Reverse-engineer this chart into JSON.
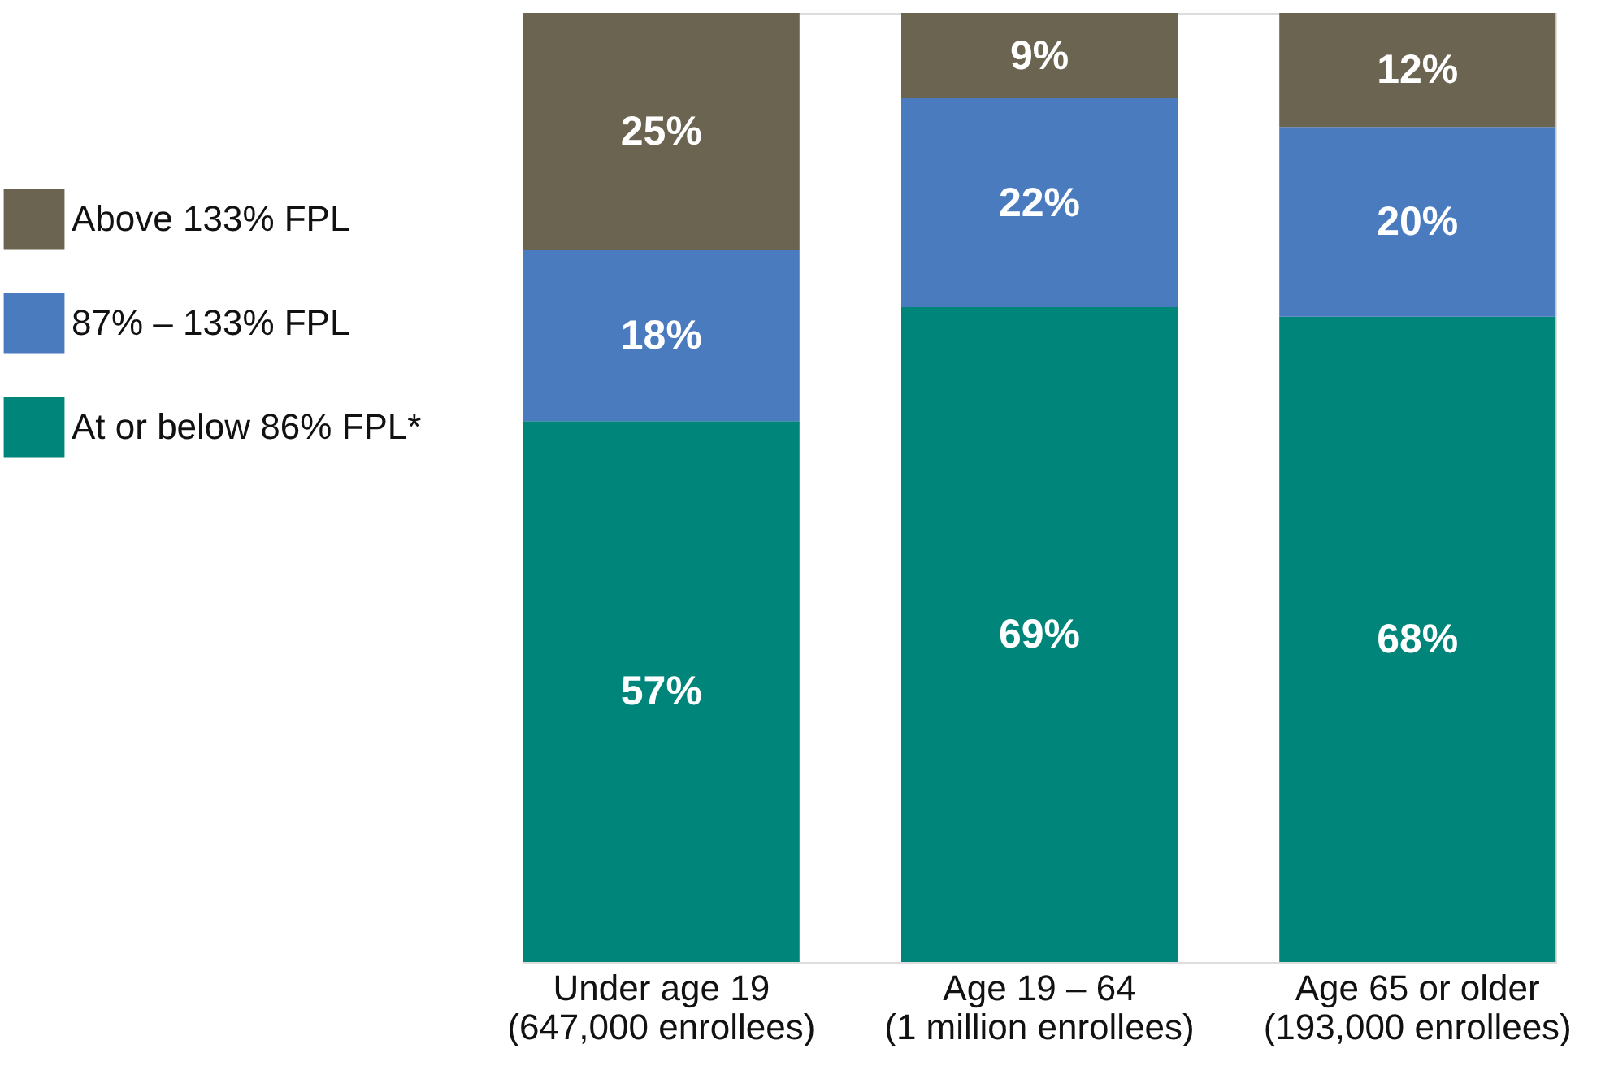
{
  "chart_data": {
    "type": "bar",
    "stacked": true,
    "legend": "left",
    "grid": false,
    "categories": [
      "Under age 19\n(647,000 enrollees)",
      "Age 19 – 64\n(1 million enrollees)",
      "Age 65 or older\n(193,000 enrollees)"
    ],
    "series": [
      {
        "name": "At or below 86% FPL*",
        "color": "#00857a",
        "values": [
          57,
          69,
          68
        ],
        "value_labels": [
          "57%",
          "69%",
          "68%"
        ]
      },
      {
        "name": "87% – 133% FPL",
        "color": "#4a7bbf",
        "values": [
          18,
          22,
          20
        ],
        "value_labels": [
          "18%",
          "22%",
          "20%"
        ]
      },
      {
        "name": "Above 133% FPL",
        "color": "#6b6450",
        "values": [
          25,
          9,
          12
        ],
        "value_labels": [
          "25%",
          "9%",
          "12%"
        ]
      }
    ]
  }
}
